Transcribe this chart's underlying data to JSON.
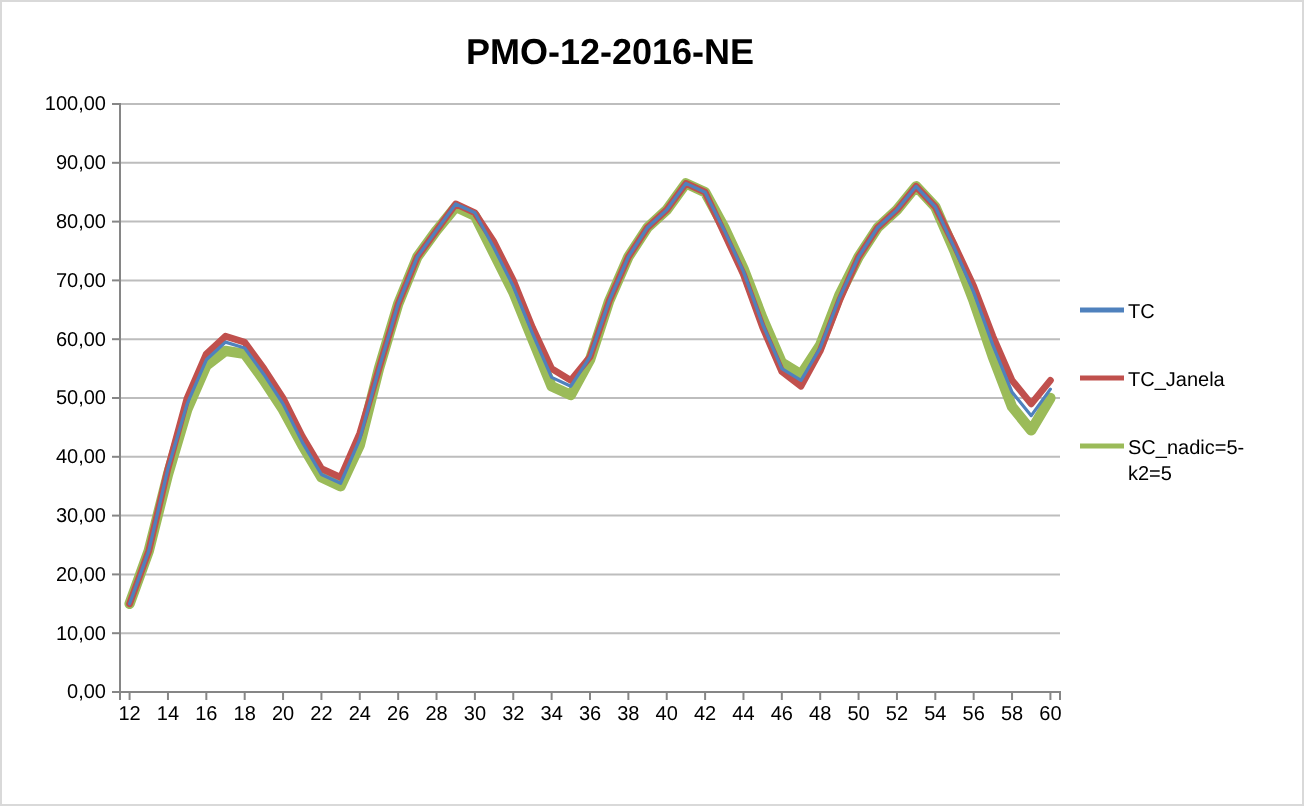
{
  "chart_data": {
    "type": "line",
    "title": "PMO-12-2016-NE",
    "x": [
      12,
      13,
      14,
      15,
      16,
      17,
      18,
      19,
      20,
      21,
      22,
      23,
      24,
      25,
      26,
      27,
      28,
      29,
      30,
      31,
      32,
      33,
      34,
      35,
      36,
      37,
      38,
      39,
      40,
      41,
      42,
      43,
      44,
      45,
      46,
      47,
      48,
      49,
      50,
      51,
      52,
      53,
      54,
      55,
      56,
      57,
      58,
      59,
      60
    ],
    "xlim": [
      11.5,
      60.5
    ],
    "xticks": [
      12,
      14,
      16,
      18,
      20,
      22,
      24,
      26,
      28,
      30,
      32,
      34,
      36,
      38,
      40,
      42,
      44,
      46,
      48,
      50,
      52,
      54,
      56,
      58,
      60
    ],
    "ylim": [
      0,
      100
    ],
    "yticks": [
      {
        "value": 0,
        "label": "0,00"
      },
      {
        "value": 10,
        "label": "10,00"
      },
      {
        "value": 20,
        "label": "20,00"
      },
      {
        "value": 30,
        "label": "30,00"
      },
      {
        "value": 40,
        "label": "40,00"
      },
      {
        "value": 50,
        "label": "50,00"
      },
      {
        "value": 60,
        "label": "60,00"
      },
      {
        "value": 70,
        "label": "70,00"
      },
      {
        "value": 80,
        "label": "80,00"
      },
      {
        "value": 90,
        "label": "90,00"
      },
      {
        "value": 100,
        "label": "100,00"
      }
    ],
    "grid": "y",
    "legend": "right",
    "marker": "none",
    "line_style": "solid",
    "series": [
      {
        "name": "TC",
        "color": "#4f81bd",
        "values": [
          15,
          24,
          38,
          49,
          56.5,
          59.5,
          58.5,
          54,
          49,
          42.5,
          37,
          35.5,
          43,
          55,
          66,
          74,
          78.5,
          83,
          81.5,
          75.5,
          69,
          61,
          53.5,
          52,
          57,
          66.5,
          74,
          79,
          82,
          86.5,
          85,
          78.5,
          71.5,
          62.5,
          55,
          53,
          58.5,
          67,
          74,
          79,
          82,
          86,
          82.5,
          75.5,
          68,
          59,
          51,
          47,
          51.5
        ]
      },
      {
        "name": "TC_Janela",
        "color": "#c0504d",
        "values": [
          15,
          24,
          38,
          50,
          57.5,
          60.5,
          59.5,
          55,
          50,
          43.5,
          38,
          36.5,
          44,
          55,
          66,
          74,
          78.5,
          83,
          81.5,
          76.5,
          70,
          62,
          55,
          53,
          57,
          66.5,
          74,
          79,
          82,
          86.5,
          85,
          78,
          71,
          62,
          54.5,
          52,
          58,
          66.5,
          74,
          79,
          82,
          86,
          82.5,
          76,
          69,
          60.5,
          53,
          49,
          53
        ]
      },
      {
        "name": "SC_nadic=5-k2=5",
        "color": "#9bbb59",
        "values": [
          15,
          24,
          37,
          48,
          55.5,
          58,
          57.5,
          53,
          48,
          42,
          36.5,
          35,
          42,
          55,
          66,
          74,
          78.5,
          82.5,
          81,
          74.5,
          68,
          60,
          52,
          50.5,
          56.5,
          66.5,
          74,
          79,
          82,
          86.5,
          85,
          79,
          72,
          63.5,
          56,
          54,
          59,
          67.5,
          74,
          79,
          82,
          86,
          82.5,
          75,
          66.5,
          57,
          48.5,
          44.5,
          50
        ]
      }
    ]
  }
}
